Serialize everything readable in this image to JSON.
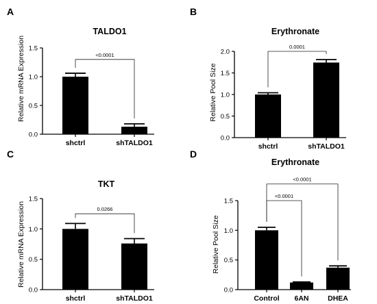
{
  "chart_data": [
    {
      "panel_letter": "A",
      "type": "bar",
      "title": "TALDO1",
      "ylabel": "Relative mRNA Expression",
      "xlabel": "",
      "categories": [
        "shctrl",
        "shTALDO1"
      ],
      "values": [
        1.0,
        0.13
      ],
      "errors": [
        0.06,
        0.05
      ],
      "ylim": [
        0,
        1.5
      ],
      "yticks": [
        "0.0",
        "0.5",
        "1.0",
        "1.5"
      ],
      "ytick_values": [
        0,
        0.5,
        1.0,
        1.5
      ],
      "comparisons": [
        {
          "from": 0,
          "to": 1,
          "label": "<0.0001",
          "level": 1.3
        }
      ],
      "grid": false,
      "bar_color": "#000000"
    },
    {
      "panel_letter": "B",
      "type": "bar",
      "title": "Erythronate",
      "ylabel": "Relative Pool Size",
      "xlabel": "",
      "categories": [
        "shctrl",
        "shTALDO1"
      ],
      "values": [
        1.0,
        1.74
      ],
      "errors": [
        0.04,
        0.07
      ],
      "ylim": [
        0,
        2.0
      ],
      "yticks": [
        "0.0",
        "0.5",
        "1.0",
        "1.5",
        "2.0"
      ],
      "ytick_values": [
        0,
        0.5,
        1.0,
        1.5,
        2.0
      ],
      "comparisons": [
        {
          "from": 0,
          "to": 1,
          "label": "0.0001",
          "level": 2.0
        }
      ],
      "grid": false,
      "bar_color": "#000000"
    },
    {
      "panel_letter": "C",
      "type": "bar",
      "title": "TKT",
      "ylabel": "Relative mRNA Expression",
      "xlabel": "",
      "categories": [
        "shctrl",
        "shTALDO1"
      ],
      "values": [
        1.0,
        0.76
      ],
      "errors": [
        0.09,
        0.08
      ],
      "ylim": [
        0,
        1.5
      ],
      "yticks": [
        "0.0",
        "0.5",
        "1.0",
        "1.5"
      ],
      "ytick_values": [
        0,
        0.5,
        1.0,
        1.5
      ],
      "comparisons": [
        {
          "from": 0,
          "to": 1,
          "label": "0.0266",
          "level": 1.25
        }
      ],
      "grid": false,
      "bar_color": "#000000"
    },
    {
      "panel_letter": "D",
      "type": "bar",
      "title": "Erythronate",
      "ylabel": "Relative Pool Size",
      "xlabel": "",
      "categories": [
        "Control",
        "6AN",
        "DHEA"
      ],
      "values": [
        1.0,
        0.12,
        0.37
      ],
      "errors": [
        0.05,
        0.01,
        0.03
      ],
      "ylim": [
        0,
        1.5
      ],
      "yticks": [
        "0.0",
        "0.5",
        "1.0",
        "1.5"
      ],
      "ytick_values": [
        0,
        0.5,
        1.0,
        1.5
      ],
      "comparisons": [
        {
          "from": 0,
          "to": 1,
          "label": "<0.0001",
          "level": 1.5
        },
        {
          "from": 0,
          "to": 2,
          "label": "<0.0001",
          "level": 1.78
        }
      ],
      "grid": false,
      "bar_color": "#000000"
    }
  ]
}
